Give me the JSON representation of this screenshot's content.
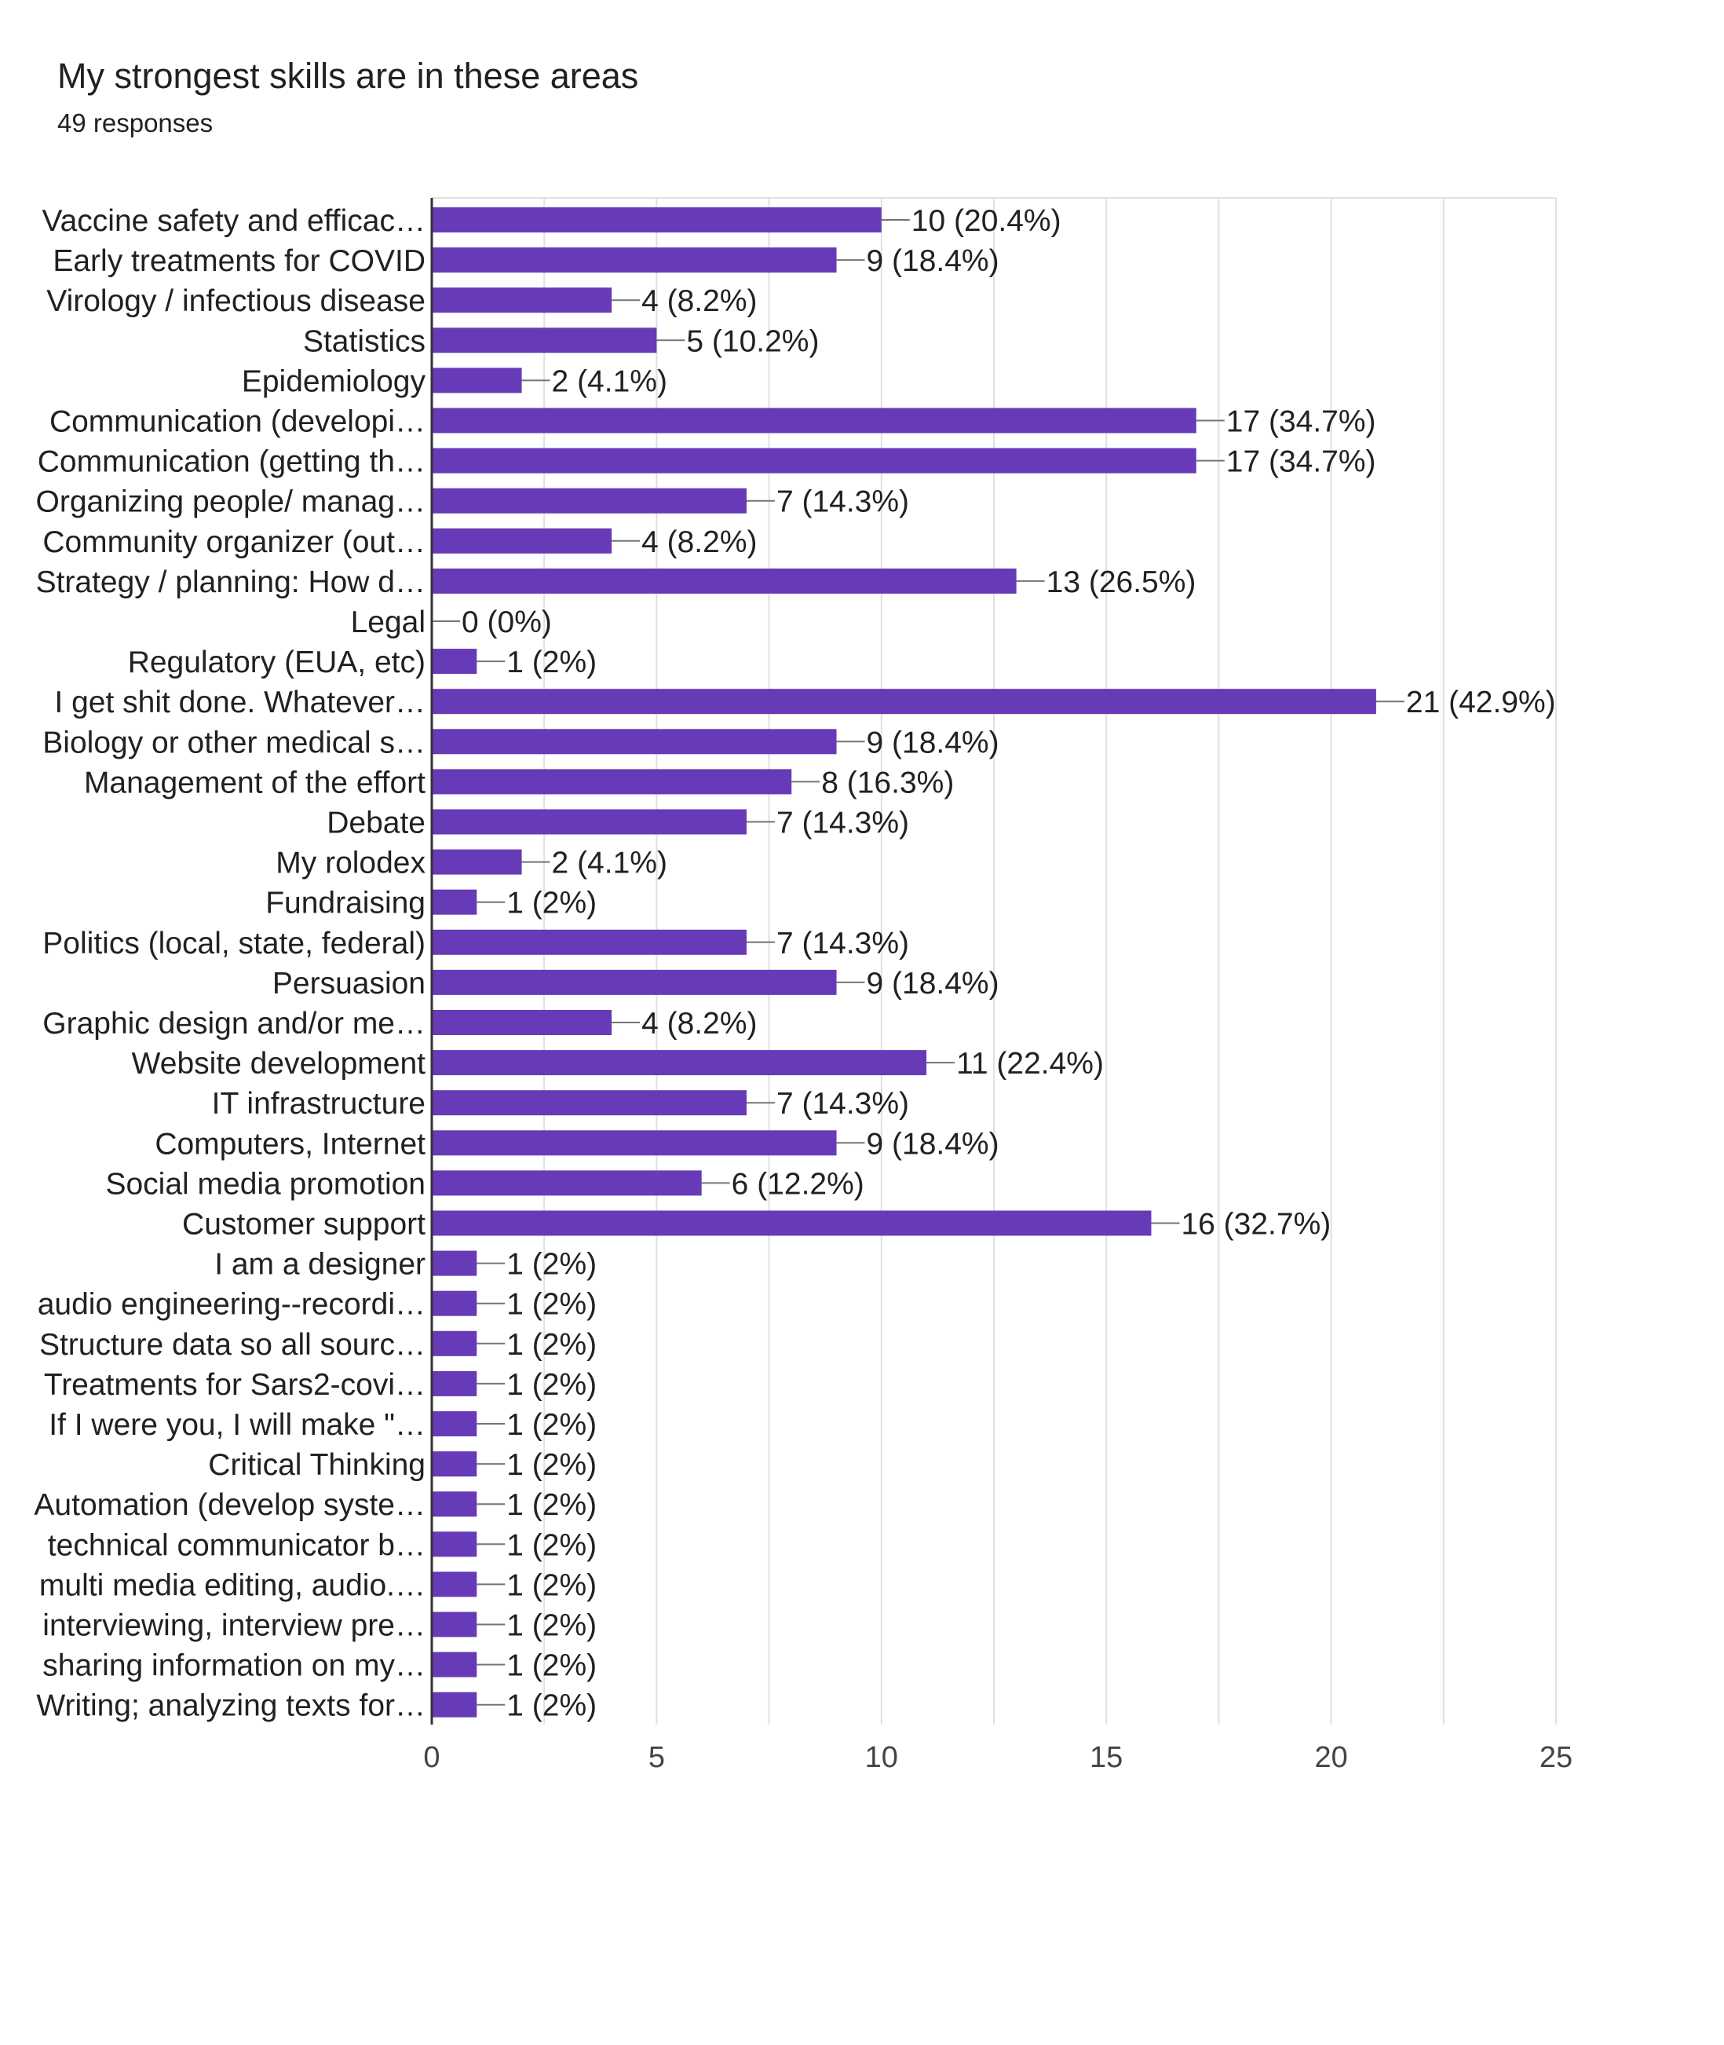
{
  "chart_data": {
    "type": "bar",
    "orientation": "horizontal",
    "title": "My strongest skills are in these areas",
    "subtitle": "49 responses",
    "categories": [
      "Vaccine safety and efficac…",
      "Early treatments for COVID",
      "Virology / infectious disease",
      "Statistics",
      "Epidemiology",
      "Communication (developi…",
      "Communication (getting th…",
      "Organizing people/ manag…",
      "Community organizer (out…",
      "Strategy / planning: How d…",
      "Legal",
      "Regulatory (EUA, etc)",
      "I get shit done. Whatever…",
      "Biology or other medical s…",
      "Management of the effort",
      "Debate",
      "My rolodex",
      "Fundraising",
      "Politics (local, state, federal)",
      "Persuasion",
      "Graphic design and/or me…",
      "Website development",
      "IT infrastructure",
      "Computers, Internet",
      "Social media promotion",
      "Customer support",
      "I am a designer",
      "audio engineering--recordi…",
      "Structure data so all sourc…",
      "Treatments for Sars2-covi…",
      "If I were you, I will make \"…",
      "Critical Thinking",
      "Automation (develop syste…",
      "technical communicator b…",
      "multi media editing, audio.…",
      "interviewing, interview pre…",
      "sharing information on my…",
      "Writing; analyzing texts for…"
    ],
    "values": [
      10,
      9,
      4,
      5,
      2,
      17,
      17,
      7,
      4,
      13,
      0,
      1,
      21,
      9,
      8,
      7,
      2,
      1,
      7,
      9,
      4,
      11,
      7,
      9,
      6,
      16,
      1,
      1,
      1,
      1,
      1,
      1,
      1,
      1,
      1,
      1,
      1,
      1
    ],
    "value_labels": [
      "10 (20.4%)",
      "9 (18.4%)",
      "4 (8.2%)",
      "5 (10.2%)",
      "2 (4.1%)",
      "17 (34.7%)",
      "17 (34.7%)",
      "7 (14.3%)",
      "4 (8.2%)",
      "13 (26.5%)",
      "0 (0%)",
      "1 (2%)",
      "21 (42.9%)",
      "9 (18.4%)",
      "8 (16.3%)",
      "7 (14.3%)",
      "2 (4.1%)",
      "1 (2%)",
      "7 (14.3%)",
      "9 (18.4%)",
      "4 (8.2%)",
      "11 (22.4%)",
      "7 (14.3%)",
      "9 (18.4%)",
      "6 (12.2%)",
      "16 (32.7%)",
      "1 (2%)",
      "1 (2%)",
      "1 (2%)",
      "1 (2%)",
      "1 (2%)",
      "1 (2%)",
      "1 (2%)",
      "1 (2%)",
      "1 (2%)",
      "1 (2%)",
      "1 (2%)",
      "1 (2%)"
    ],
    "x_ticks": [
      0,
      5,
      10,
      15,
      20,
      25
    ],
    "xlim": [
      0,
      25
    ],
    "xlabel": "",
    "ylabel": "",
    "grid": true,
    "colors": {
      "bar": "#673ab7",
      "grid": "#e0e0e0",
      "axis": "#333333",
      "text": "#202124",
      "tick_text": "#444444"
    }
  }
}
